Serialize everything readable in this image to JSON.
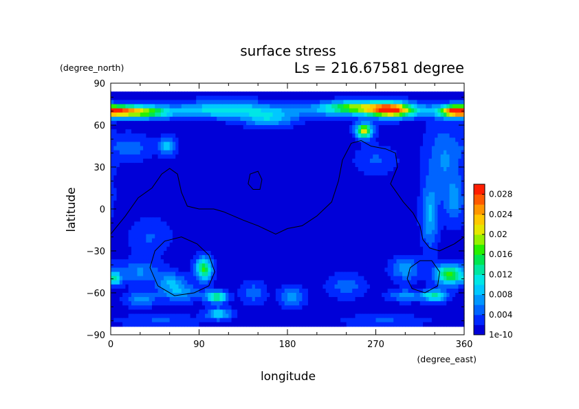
{
  "chart_data": {
    "type": "heatmap",
    "title": "surface stress",
    "subtitle": "Ls = 216.67581 degree",
    "xlabel": "longitude",
    "ylabel": "latitude",
    "x_units": "(degree_east)",
    "y_units": "(degree_north)",
    "xlim": [
      0,
      360
    ],
    "ylim": [
      -90,
      90
    ],
    "x_ticks": [
      0,
      90,
      180,
      270,
      360
    ],
    "y_ticks": [
      90,
      60,
      30,
      0,
      -30,
      -60,
      -90
    ],
    "x_tick_labels": [
      "0",
      "90",
      "180",
      "270",
      "360"
    ],
    "y_tick_labels": [
      "90",
      "60",
      "30",
      "0",
      "−30",
      "−60",
      "−90"
    ],
    "colorbar": {
      "min": 0,
      "max": 0.03,
      "tick_values": [
        0,
        0.004,
        0.008,
        0.012,
        0.016,
        0.02,
        0.024,
        0.028
      ],
      "tick_labels": [
        "1e-10",
        "0.004",
        "0.008",
        "0.012",
        "0.016",
        "0.02",
        "0.024",
        "0.028"
      ],
      "colors": [
        "#0000d8",
        "#0028ff",
        "#0064ff",
        "#0096ff",
        "#00c8ff",
        "#00e6e6",
        "#00e6a0",
        "#00e650",
        "#28f000",
        "#96f000",
        "#e6e600",
        "#ffc800",
        "#ff9600",
        "#ff5a00",
        "#ff1e00"
      ]
    },
    "grid": false,
    "data_lat_range": [
      -84,
      84
    ],
    "background_value": 0.0012,
    "field_features": [
      {
        "kind": "band",
        "lat": 70,
        "lat_width": 5,
        "value": 0.005,
        "lon_from": 0,
        "lon_to": 360
      },
      {
        "kind": "blob",
        "lon": 10,
        "lat": 70,
        "lon_width": 22,
        "lat_width": 4,
        "value": 0.02
      },
      {
        "kind": "blob",
        "lon": 40,
        "lat": 69,
        "lon_width": 20,
        "lat_width": 4,
        "value": 0.01
      },
      {
        "kind": "blob",
        "lon": 118,
        "lat": 72,
        "lon_width": 40,
        "lat_width": 6,
        "value": 0.006
      },
      {
        "kind": "blob",
        "lon": 160,
        "lat": 64,
        "lon_width": 25,
        "lat_width": 5,
        "value": 0.007
      },
      {
        "kind": "blob",
        "lon": 248,
        "lat": 73,
        "lon_width": 30,
        "lat_width": 4,
        "value": 0.014
      },
      {
        "kind": "blob",
        "lon": 285,
        "lat": 71,
        "lon_width": 22,
        "lat_width": 5,
        "value": 0.024
      },
      {
        "kind": "blob",
        "lon": 258,
        "lat": 56,
        "lon_width": 8,
        "lat_width": 5,
        "value": 0.02
      },
      {
        "kind": "blob",
        "lon": 350,
        "lat": 70,
        "lon_width": 14,
        "lat_width": 4,
        "value": 0.018
      },
      {
        "kind": "blob",
        "lon": 20,
        "lat": 44,
        "lon_width": 20,
        "lat_width": 9,
        "value": 0.004
      },
      {
        "kind": "blob",
        "lon": 58,
        "lat": 45,
        "lon_width": 8,
        "lat_width": 6,
        "value": 0.008
      },
      {
        "kind": "blob",
        "lon": 340,
        "lat": 35,
        "lon_width": 18,
        "lat_width": 25,
        "value": 0.005
      },
      {
        "kind": "blob",
        "lon": 270,
        "lat": 35,
        "lon_width": 20,
        "lat_width": 10,
        "value": 0.003
      },
      {
        "kind": "blob",
        "lon": 325,
        "lat": -5,
        "lon_width": 8,
        "lat_width": 22,
        "value": 0.007
      },
      {
        "kind": "blob",
        "lon": 350,
        "lat": 5,
        "lon_width": 10,
        "lat_width": 15,
        "value": 0.005
      },
      {
        "kind": "blob",
        "lon": 40,
        "lat": -20,
        "lon_width": 20,
        "lat_width": 12,
        "value": 0.003
      },
      {
        "kind": "blob",
        "lon": 30,
        "lat": -45,
        "lon_width": 22,
        "lat_width": 8,
        "value": 0.005
      },
      {
        "kind": "blob",
        "lon": 95,
        "lat": -43,
        "lon_width": 8,
        "lat_width": 8,
        "value": 0.015
      },
      {
        "kind": "blob",
        "lon": 62,
        "lat": -52,
        "lon_width": 14,
        "lat_width": 6,
        "value": 0.006
      },
      {
        "kind": "blob",
        "lon": 108,
        "lat": -63,
        "lon_width": 10,
        "lat_width": 4,
        "value": 0.014
      },
      {
        "kind": "blob",
        "lon": 70,
        "lat": -60,
        "lon_width": 22,
        "lat_width": 6,
        "value": 0.006
      },
      {
        "kind": "blob",
        "lon": 110,
        "lat": -75,
        "lon_width": 12,
        "lat_width": 4,
        "value": 0.009
      },
      {
        "kind": "blob",
        "lon": 30,
        "lat": -65,
        "lon_width": 14,
        "lat_width": 5,
        "value": 0.006
      },
      {
        "kind": "blob",
        "lon": 5,
        "lat": -50,
        "lon_width": 6,
        "lat_width": 4,
        "value": 0.01
      },
      {
        "kind": "blob",
        "lon": 145,
        "lat": -60,
        "lon_width": 12,
        "lat_width": 8,
        "value": 0.004
      },
      {
        "kind": "blob",
        "lon": 185,
        "lat": -63,
        "lon_width": 12,
        "lat_width": 7,
        "value": 0.006
      },
      {
        "kind": "blob",
        "lon": 240,
        "lat": -55,
        "lon_width": 18,
        "lat_width": 8,
        "value": 0.004
      },
      {
        "kind": "blob",
        "lon": 300,
        "lat": -43,
        "lon_width": 14,
        "lat_width": 8,
        "value": 0.006
      },
      {
        "kind": "blob",
        "lon": 345,
        "lat": -47,
        "lon_width": 14,
        "lat_width": 7,
        "value": 0.016
      },
      {
        "kind": "blob",
        "lon": 330,
        "lat": -62,
        "lon_width": 12,
        "lat_width": 4,
        "value": 0.012
      },
      {
        "kind": "blob",
        "lon": 300,
        "lat": -62,
        "lon_width": 16,
        "lat_width": 4,
        "value": 0.006
      },
      {
        "kind": "blob",
        "lon": 50,
        "lat": -80,
        "lon_width": 40,
        "lat_width": 4,
        "value": 0.003
      },
      {
        "kind": "blob",
        "lon": 280,
        "lat": -80,
        "lon_width": 40,
        "lat_width": 4,
        "value": 0.003
      }
    ],
    "contours": [
      {
        "name": "northern-boundary",
        "closed": false,
        "points": [
          [
            0,
            -18
          ],
          [
            15,
            -5
          ],
          [
            28,
            8
          ],
          [
            42,
            15
          ],
          [
            52,
            25
          ],
          [
            60,
            29
          ],
          [
            68,
            25
          ],
          [
            72,
            12
          ],
          [
            78,
            2
          ],
          [
            90,
            0
          ],
          [
            105,
            0
          ],
          [
            115,
            -2
          ],
          [
            125,
            -5
          ],
          [
            135,
            -8
          ],
          [
            150,
            -12
          ],
          [
            168,
            -18
          ],
          [
            180,
            -14
          ],
          [
            195,
            -12
          ],
          [
            210,
            -5
          ],
          [
            225,
            5
          ],
          [
            232,
            20
          ],
          [
            236,
            35
          ],
          [
            245,
            47
          ],
          [
            255,
            49
          ],
          [
            265,
            45
          ],
          [
            280,
            43
          ],
          [
            290,
            40
          ],
          [
            292,
            30
          ],
          [
            285,
            18
          ],
          [
            298,
            5
          ],
          [
            308,
            -3
          ],
          [
            315,
            -12
          ],
          [
            318,
            -22
          ],
          [
            325,
            -28
          ],
          [
            335,
            -30
          ],
          [
            350,
            -25
          ],
          [
            360,
            -20
          ]
        ]
      },
      {
        "name": "small-feature",
        "closed": true,
        "points": [
          [
            142,
            25
          ],
          [
            150,
            27
          ],
          [
            154,
            21
          ],
          [
            152,
            14
          ],
          [
            145,
            14
          ],
          [
            140,
            18
          ]
        ]
      },
      {
        "name": "western-basin",
        "closed": true,
        "points": [
          [
            45,
            -30
          ],
          [
            55,
            -23
          ],
          [
            72,
            -20
          ],
          [
            88,
            -25
          ],
          [
            100,
            -33
          ],
          [
            106,
            -45
          ],
          [
            100,
            -55
          ],
          [
            85,
            -60
          ],
          [
            65,
            -62
          ],
          [
            48,
            -55
          ],
          [
            40,
            -42
          ]
        ]
      },
      {
        "name": "eastern-basin",
        "closed": true,
        "points": [
          [
            305,
            -42
          ],
          [
            315,
            -37
          ],
          [
            327,
            -37
          ],
          [
            335,
            -45
          ],
          [
            333,
            -55
          ],
          [
            320,
            -60
          ],
          [
            307,
            -57
          ],
          [
            302,
            -50
          ]
        ]
      }
    ]
  }
}
